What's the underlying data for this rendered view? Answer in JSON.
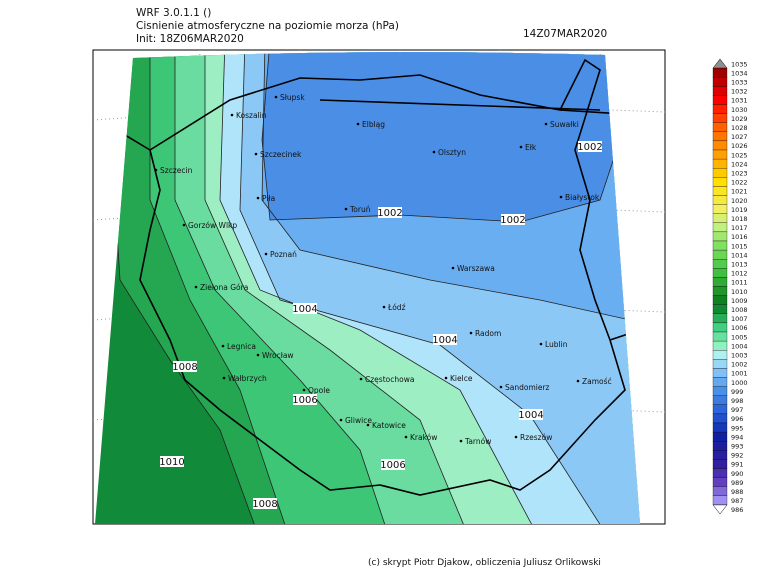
{
  "header": {
    "model": "WRF 3.0.1.1 ()",
    "title": "Cisnienie atmosferyczne na poziomie morza (hPa)",
    "init": "Init: 18Z06MAR2020",
    "valid": "14Z07MAR2020"
  },
  "cities": [
    "Słupsk",
    "Koszalin",
    "Elbląg",
    "Suwałki",
    "Szczecinek",
    "Olsztyn",
    "Ełk",
    "Szczecin",
    "Piła",
    "Toruń",
    "Białystok",
    "Gorzów Wlkp",
    "Poznań",
    "Warszawa",
    "Zielona Góra",
    "Łódź",
    "Radom",
    "Lublin",
    "Legnica",
    "Wrocław",
    "Wałbrzych",
    "Częstochowa",
    "Kielce",
    "Sandomierz",
    "Zamość",
    "Opole",
    "Gliwice",
    "Katowice",
    "Kraków",
    "Tarnów",
    "Rzeszów"
  ],
  "isobar_labels": [
    1002,
    1002,
    1002,
    1004,
    1004,
    1004,
    1008,
    1006,
    1010,
    1006,
    1008
  ],
  "colorbar": {
    "levels": [
      1035,
      1034,
      1033,
      1032,
      1031,
      1030,
      1029,
      1028,
      1027,
      1026,
      1025,
      1024,
      1023,
      1022,
      1021,
      1020,
      1019,
      1018,
      1017,
      1016,
      1015,
      1014,
      1013,
      1012,
      1011,
      1010,
      1009,
      1008,
      1007,
      1006,
      1005,
      1004,
      1003,
      1002,
      1001,
      1000,
      999,
      998,
      997,
      996,
      995,
      994,
      993,
      992,
      991,
      990,
      989,
      988,
      987,
      986
    ]
  },
  "footer": "(c) skrypt Piotr Djakow, obliczenia Juliusz Orlikowski"
}
